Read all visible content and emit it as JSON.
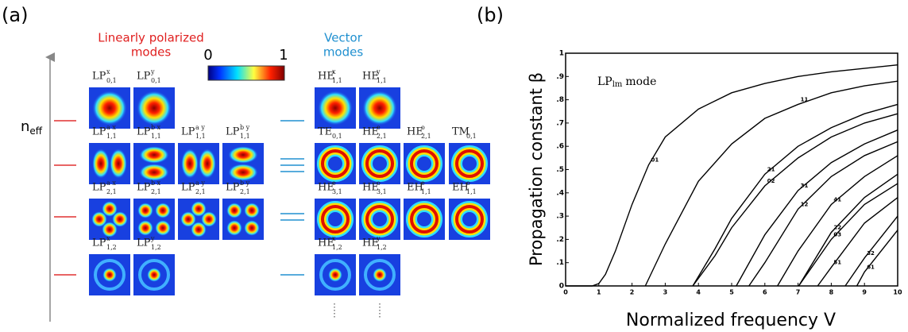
{
  "panel_a": {
    "label": "(a)",
    "lp_title": [
      "Linearly polarized",
      "modes"
    ],
    "vector_title": [
      "Vector",
      "modes"
    ],
    "colorbar_ticks": [
      "0",
      "1"
    ],
    "axis_label": {
      "base": "n",
      "sub": "eff"
    },
    "rows": [
      {
        "lp": [
          {
            "base": "LP",
            "sup": "x",
            "sub": "0,1"
          },
          {
            "base": "LP",
            "sup": "y",
            "sub": "0,1"
          }
        ],
        "vector": [
          {
            "base": "HE",
            "sup": "x",
            "sub": "1,1"
          },
          {
            "base": "HE",
            "sup": "y",
            "sub": "1,1"
          }
        ]
      },
      {
        "lp": [
          {
            "base": "LP",
            "sup": "a x",
            "sub": "1,1"
          },
          {
            "base": "LP",
            "sup": "b x",
            "sub": "1,1"
          },
          {
            "base": "LP",
            "sup": "a y",
            "sub": "1,1"
          },
          {
            "base": "LP",
            "sup": "b y",
            "sub": "1,1"
          }
        ],
        "vector": [
          {
            "base": "TE",
            "sub": "0,1"
          },
          {
            "base": "HE",
            "sup": "e",
            "sub": "2,1"
          },
          {
            "base": "HE",
            "sup": "o",
            "sub": "2,1"
          },
          {
            "base": "TM",
            "sub": "0,1"
          }
        ]
      },
      {
        "lp": [
          {
            "base": "LP",
            "sup": "a x",
            "sub": "2,1"
          },
          {
            "base": "LP",
            "sup": "b x",
            "sub": "2,1"
          },
          {
            "base": "LP",
            "sup": "a y",
            "sub": "2,1"
          },
          {
            "base": "LP",
            "sup": "b y",
            "sub": "2,1"
          }
        ],
        "vector": [
          {
            "base": "HE",
            "sup": "e",
            "sub": "3,1"
          },
          {
            "base": "HE",
            "sup": "o",
            "sub": "3,1"
          },
          {
            "base": "EH",
            "sup": "e",
            "sub": "1,1"
          },
          {
            "base": "EH",
            "sup": "o",
            "sub": "1,1"
          }
        ]
      },
      {
        "lp": [
          {
            "base": "LP",
            "sup": "x",
            "sub": "1,2"
          },
          {
            "base": "LP",
            "sup": "y",
            "sub": "1,2"
          }
        ],
        "vector": [
          {
            "base": "HE",
            "sup": "x",
            "sub": "1,2"
          },
          {
            "base": "HE",
            "sup": "y",
            "sub": "1,2"
          }
        ]
      }
    ]
  },
  "chart_data": {
    "type": "line",
    "label": "(b)",
    "annotation": {
      "base": "LP",
      "sub": "lm",
      "text": "mode"
    },
    "xlabel": "Normalized frequency V",
    "ylabel": "Propagation constant  β",
    "xlim": [
      0,
      10
    ],
    "ylim": [
      0,
      1
    ],
    "xticks": [
      0,
      1,
      2,
      3,
      4,
      5,
      6,
      7,
      8,
      9,
      10
    ],
    "yticks": [
      0,
      {
        "value": 0.1,
        "label": ".1"
      },
      {
        "value": 0.2,
        "label": ".2"
      },
      {
        "value": 0.3,
        "label": ".3"
      },
      {
        "value": 0.4,
        "label": ".4"
      },
      {
        "value": 0.5,
        "label": ".5"
      },
      {
        "value": 0.6,
        "label": ".6"
      },
      {
        "value": 0.7,
        "label": ".7"
      },
      {
        "value": 0.8,
        "label": ".8"
      },
      {
        "value": 0.9,
        "label": ".9"
      },
      1
    ],
    "color": "#000000",
    "series": [
      {
        "name": "01",
        "x": [
          0,
          0.8,
          1,
          1.2,
          1.5,
          2,
          2.5,
          3,
          4,
          5,
          6,
          7,
          8,
          9,
          10
        ],
        "values": [
          0,
          0,
          0.01,
          0.05,
          0.15,
          0.35,
          0.52,
          0.64,
          0.76,
          0.83,
          0.87,
          0.9,
          0.92,
          0.935,
          0.95
        ]
      },
      {
        "name": "11",
        "x": [
          2.4,
          3,
          4,
          5,
          6,
          7,
          8,
          9,
          10
        ],
        "values": [
          0,
          0.18,
          0.45,
          0.61,
          0.72,
          0.78,
          0.83,
          0.86,
          0.88
        ]
      },
      {
        "name": "21",
        "x": [
          3.83,
          4.5,
          5,
          6,
          7,
          8,
          9,
          10
        ],
        "values": [
          0,
          0.16,
          0.29,
          0.48,
          0.6,
          0.68,
          0.74,
          0.78
        ]
      },
      {
        "name": "02",
        "x": [
          3.83,
          4.5,
          5,
          6,
          7,
          8,
          9,
          10
        ],
        "values": [
          0,
          0.13,
          0.25,
          0.43,
          0.55,
          0.64,
          0.7,
          0.74
        ]
      },
      {
        "name": "31",
        "x": [
          5.14,
          6,
          7,
          8,
          9,
          10
        ],
        "values": [
          0,
          0.22,
          0.41,
          0.53,
          0.61,
          0.67
        ]
      },
      {
        "name": "12",
        "x": [
          5.52,
          6,
          7,
          8,
          9,
          10
        ],
        "values": [
          0,
          0.1,
          0.33,
          0.47,
          0.56,
          0.62
        ]
      },
      {
        "name": "41",
        "x": [
          6.38,
          7,
          8,
          9,
          10
        ],
        "values": [
          0,
          0.15,
          0.35,
          0.47,
          0.56
        ]
      },
      {
        "name": "22",
        "x": [
          7.02,
          8,
          9,
          10
        ],
        "values": [
          0,
          0.23,
          0.38,
          0.48
        ]
      },
      {
        "name": "03",
        "x": [
          7.02,
          8,
          9,
          10
        ],
        "values": [
          0,
          0.2,
          0.35,
          0.44
        ]
      },
      {
        "name": "51",
        "x": [
          7.59,
          8,
          9,
          10
        ],
        "values": [
          0,
          0.08,
          0.27,
          0.38
        ]
      },
      {
        "name": "32",
        "x": [
          8.42,
          9,
          10
        ],
        "values": [
          0,
          0.12,
          0.3
        ]
      },
      {
        "name": "61",
        "x": [
          8.77,
          9,
          10
        ],
        "values": [
          0,
          0.06,
          0.24
        ]
      }
    ]
  }
}
